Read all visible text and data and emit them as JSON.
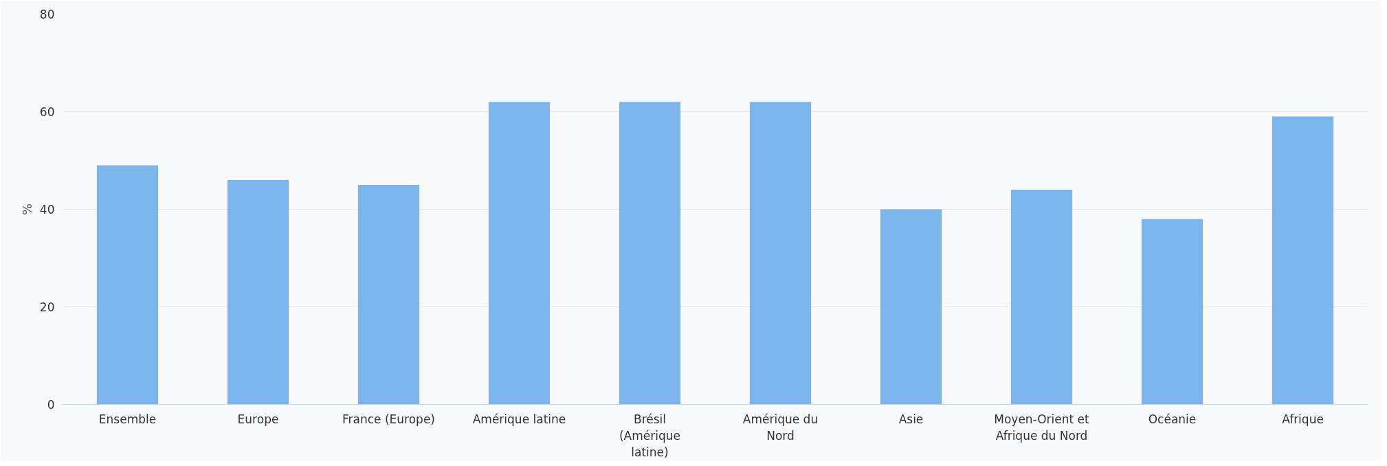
{
  "chart_data": {
    "type": "bar",
    "ylabel": "%",
    "categories": [
      "Ensemble",
      "Europe",
      "France (Europe)",
      "Amérique latine",
      "Brésil (Amérique latine)",
      "Amérique du Nord",
      "Asie",
      "Moyen-Orient et Afrique du Nord",
      "Océanie",
      "Afrique"
    ],
    "values": [
      49,
      46,
      45,
      62,
      62,
      62,
      40,
      44,
      38,
      59
    ],
    "color": "#7cb5ec",
    "ylim": [
      0,
      80
    ],
    "yticks": [
      0,
      20,
      40,
      60,
      80
    ],
    "grid": "y"
  }
}
